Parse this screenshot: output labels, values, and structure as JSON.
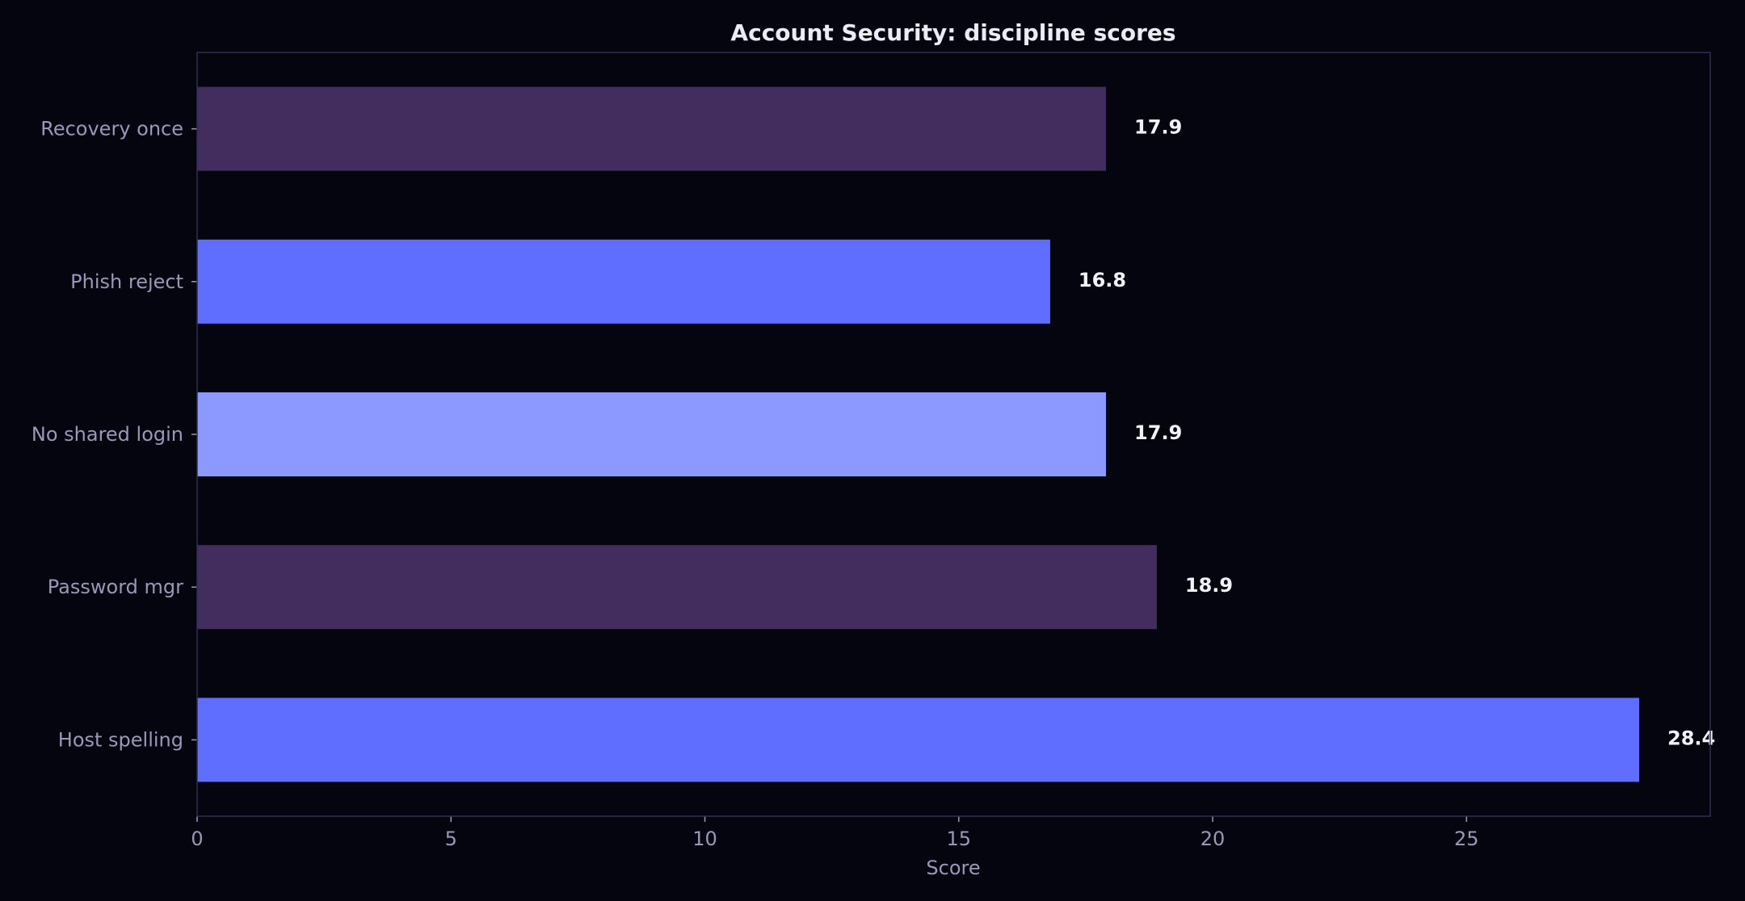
{
  "chart_data": {
    "type": "bar",
    "orientation": "horizontal",
    "title": "Account Security: discipline scores",
    "xlabel": "Score",
    "ylabel": "",
    "xlim": [
      0,
      29.8
    ],
    "xticks": [
      0,
      5,
      10,
      15,
      20,
      25
    ],
    "grid": false,
    "categories": [
      "Recovery once",
      "Phish reject",
      "No shared login",
      "Password mgr",
      "Host spelling"
    ],
    "values": [
      17.9,
      16.8,
      17.9,
      18.9,
      28.4
    ],
    "value_labels": [
      "17.9",
      "16.8",
      "17.9",
      "18.9",
      "28.4"
    ],
    "bar_colors": [
      "#432d5e",
      "#5f6eff",
      "#8c9aff",
      "#432d5e",
      "#5f6eff"
    ]
  }
}
